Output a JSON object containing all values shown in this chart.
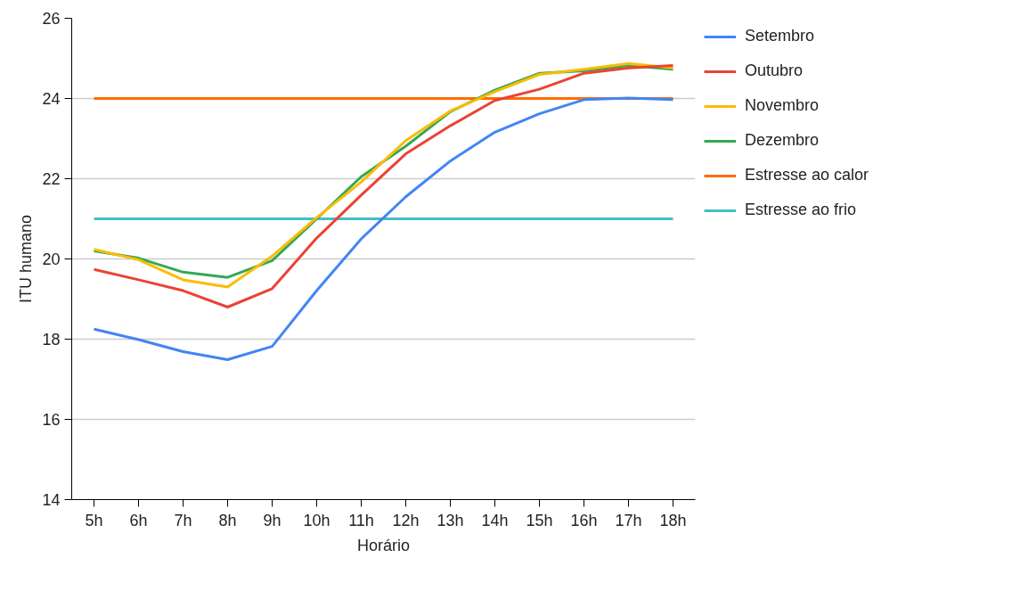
{
  "chart_data": {
    "type": "line",
    "xlabel": "Horário",
    "ylabel": "ITU humano",
    "categories": [
      "5h",
      "6h",
      "7h",
      "8h",
      "9h",
      "10h",
      "11h",
      "12h",
      "13h",
      "14h",
      "15h",
      "16h",
      "17h",
      "18h"
    ],
    "ylim": [
      14,
      26
    ],
    "yticks": [
      14,
      16,
      18,
      20,
      22,
      24,
      26
    ],
    "grid": "y",
    "legend": "top right",
    "marker": "none",
    "line_style": "solid",
    "series": [
      {
        "name": "Setembro",
        "color": "#4285f4",
        "values": [
          18.25,
          17.99,
          17.69,
          17.49,
          17.82,
          19.21,
          20.5,
          21.55,
          22.44,
          23.16,
          23.62,
          23.97,
          24.01,
          23.97
        ]
      },
      {
        "name": "Outubro",
        "color": "#ea4335",
        "values": [
          19.74,
          19.48,
          19.21,
          18.8,
          19.26,
          20.52,
          21.59,
          22.62,
          23.32,
          23.95,
          24.23,
          24.63,
          24.76,
          24.82
        ]
      },
      {
        "name": "Novembro",
        "color": "#fbbc04",
        "values": [
          20.24,
          19.98,
          19.48,
          19.3,
          20.07,
          21.03,
          21.92,
          22.95,
          23.69,
          24.17,
          24.6,
          24.73,
          24.87,
          24.76
        ]
      },
      {
        "name": "Dezembro",
        "color": "#34a853",
        "values": [
          20.2,
          20.02,
          19.67,
          19.54,
          19.96,
          21.0,
          22.05,
          22.81,
          23.67,
          24.21,
          24.63,
          24.69,
          24.82,
          24.73
        ]
      },
      {
        "name": "Estresse ao calor",
        "color": "#ff6d01",
        "values": [
          24,
          24,
          24,
          24,
          24,
          24,
          24,
          24,
          24,
          24,
          24,
          24,
          24,
          24
        ]
      },
      {
        "name": "Estresse ao frio",
        "color": "#46bdc6",
        "values": [
          21,
          21,
          21,
          21,
          21,
          21,
          21,
          21,
          21,
          21,
          21,
          21,
          21,
          21
        ]
      }
    ]
  }
}
